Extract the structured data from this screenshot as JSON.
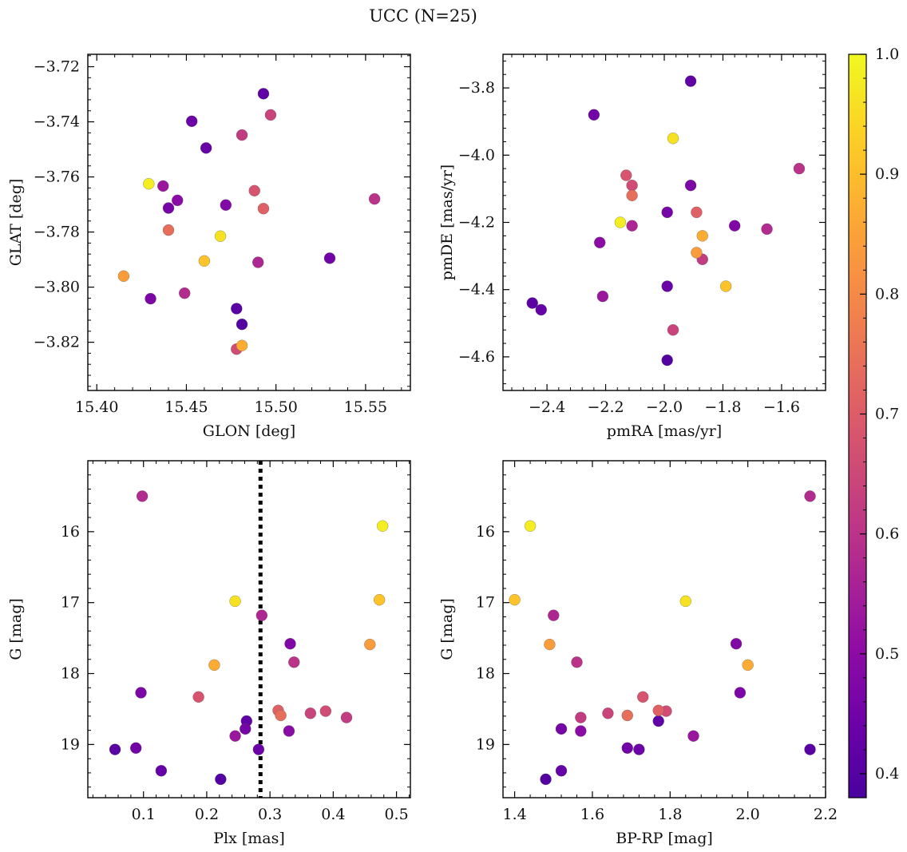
{
  "title": "UCC (N=25)",
  "colorbar": {
    "min": 0.38,
    "max": 1.0,
    "ticks": [
      0.4,
      0.5,
      0.6,
      0.7,
      0.8,
      0.9,
      1.0
    ],
    "tick_labels": [
      "0.4",
      "0.5",
      "0.6",
      "0.7",
      "0.8",
      "0.9",
      "1.0"
    ],
    "colormap": "plasma"
  },
  "stars": [
    {
      "glon": 15.429,
      "glat": -3.7625,
      "pmra": -2.15,
      "pmde": -4.2,
      "plx": 0.478,
      "g": 15.92,
      "bprp": 1.44,
      "p": 0.98
    },
    {
      "glon": 15.469,
      "glat": -3.7815,
      "pmra": -1.97,
      "pmde": -3.95,
      "plx": 0.245,
      "g": 16.98,
      "bprp": 1.84,
      "p": 0.96
    },
    {
      "glon": 15.46,
      "glat": -3.7905,
      "pmra": -1.79,
      "pmde": -4.39,
      "plx": 0.473,
      "g": 16.96,
      "bprp": 1.4,
      "p": 0.91
    },
    {
      "glon": 15.481,
      "glat": -3.8212,
      "pmra": -1.87,
      "pmde": -4.24,
      "plx": 0.212,
      "g": 17.88,
      "bprp": 2.0,
      "p": 0.87
    },
    {
      "glon": 15.415,
      "glat": -3.796,
      "pmra": -1.89,
      "pmde": -4.29,
      "plx": 0.458,
      "g": 17.59,
      "bprp": 1.49,
      "p": 0.84
    },
    {
      "glon": 15.44,
      "glat": -3.7793,
      "pmra": -2.11,
      "pmde": -4.12,
      "plx": 0.317,
      "g": 18.59,
      "bprp": 1.69,
      "p": 0.74
    },
    {
      "glon": 15.493,
      "glat": -3.7715,
      "pmra": -1.89,
      "pmde": -4.17,
      "plx": 0.313,
      "g": 18.52,
      "bprp": 1.77,
      "p": 0.71
    },
    {
      "glon": 15.488,
      "glat": -3.765,
      "pmra": -2.13,
      "pmde": -4.06,
      "plx": 0.187,
      "g": 18.33,
      "bprp": 1.73,
      "p": 0.68
    },
    {
      "glon": 15.478,
      "glat": -3.8225,
      "pmra": -2.11,
      "pmde": -4.09,
      "plx": 0.388,
      "g": 18.53,
      "bprp": 1.79,
      "p": 0.66
    },
    {
      "glon": 15.497,
      "glat": -3.7375,
      "pmra": -1.97,
      "pmde": -4.52,
      "plx": 0.364,
      "g": 18.56,
      "bprp": 1.64,
      "p": 0.64
    },
    {
      "glon": 15.481,
      "glat": -3.7448,
      "pmra": -1.87,
      "pmde": -4.31,
      "plx": 0.421,
      "g": 18.62,
      "bprp": 1.57,
      "p": 0.62
    },
    {
      "glon": 15.555,
      "glat": -3.768,
      "pmra": -1.54,
      "pmde": -4.04,
      "plx": 0.338,
      "g": 17.84,
      "bprp": 1.56,
      "p": 0.6
    },
    {
      "glon": 15.449,
      "glat": -3.8022,
      "pmra": -1.65,
      "pmde": -4.22,
      "plx": 0.098,
      "g": 15.5,
      "bprp": 2.16,
      "p": 0.58
    },
    {
      "glon": 15.49,
      "glat": -3.791,
      "pmra": -2.11,
      "pmde": -4.21,
      "plx": 0.287,
      "g": 17.18,
      "bprp": 1.5,
      "p": 0.57
    },
    {
      "glon": 15.437,
      "glat": -3.7633,
      "pmra": -2.21,
      "pmde": -4.42,
      "plx": 0.245,
      "g": 18.88,
      "bprp": 1.86,
      "p": 0.53
    },
    {
      "glon": 15.445,
      "glat": -3.7685,
      "pmra": -2.22,
      "pmde": -4.26,
      "plx": 0.33,
      "g": 18.81,
      "bprp": 1.57,
      "p": 0.5
    },
    {
      "glon": 15.472,
      "glat": -3.7702,
      "pmra": -1.76,
      "pmde": -4.21,
      "plx": 0.332,
      "g": 17.58,
      "bprp": 1.97,
      "p": 0.48
    },
    {
      "glon": 15.43,
      "glat": -3.8042,
      "pmra": -1.91,
      "pmde": -4.09,
      "plx": 0.096,
      "g": 18.27,
      "bprp": 1.98,
      "p": 0.47
    },
    {
      "glon": 15.44,
      "glat": -3.7713,
      "pmra": -1.99,
      "pmde": -4.17,
      "plx": 0.261,
      "g": 18.78,
      "bprp": 1.52,
      "p": 0.46
    },
    {
      "glon": 15.53,
      "glat": -3.7895,
      "pmra": -2.24,
      "pmde": -3.88,
      "plx": 0.088,
      "g": 19.05,
      "bprp": 1.69,
      "p": 0.45
    },
    {
      "glon": 15.453,
      "glat": -3.7398,
      "pmra": -1.99,
      "pmde": -4.39,
      "plx": 0.282,
      "g": 19.07,
      "bprp": 1.72,
      "p": 0.44
    },
    {
      "glon": 15.461,
      "glat": -3.7495,
      "pmra": -2.42,
      "pmde": -4.46,
      "plx": 0.128,
      "g": 19.37,
      "bprp": 1.52,
      "p": 0.43
    },
    {
      "glon": 15.493,
      "glat": -3.7298,
      "pmra": -1.91,
      "pmde": -3.78,
      "plx": 0.263,
      "g": 18.67,
      "bprp": 1.77,
      "p": 0.42
    },
    {
      "glon": 15.478,
      "glat": -3.8078,
      "pmra": -2.45,
      "pmde": -4.44,
      "plx": 0.055,
      "g": 19.07,
      "bprp": 2.16,
      "p": 0.41
    },
    {
      "glon": 15.481,
      "glat": -3.8135,
      "pmra": -1.99,
      "pmde": -4.61,
      "plx": 0.222,
      "g": 19.49,
      "bprp": 1.48,
      "p": 0.4
    }
  ],
  "chart_data": [
    {
      "type": "scatter",
      "x_field": "glon",
      "y_field": "glat",
      "xlabel": "GLON [deg]",
      "ylabel": "GLAT [deg]",
      "xlim": [
        15.395,
        15.575
      ],
      "ylim": [
        -3.8375,
        -3.7155
      ],
      "xticks": [
        15.4,
        15.45,
        15.5,
        15.55
      ],
      "xtick_labels": [
        "15.40",
        "15.45",
        "15.50",
        "15.55"
      ],
      "yticks": [
        -3.72,
        -3.74,
        -3.76,
        -3.78,
        -3.8,
        -3.82
      ],
      "ytick_labels": [
        "−3.72",
        "−3.74",
        "−3.76",
        "−3.78",
        "−3.80",
        "−3.82"
      ],
      "yinvert": false,
      "color_by": "membership probability"
    },
    {
      "type": "scatter",
      "x_field": "pmra",
      "y_field": "pmde",
      "xlabel": "pmRA [mas/yr]",
      "ylabel": "pmDE [mas/yr]",
      "xlim": [
        -2.55,
        -1.45
      ],
      "ylim": [
        -4.7,
        -3.7
      ],
      "xticks": [
        -2.4,
        -2.2,
        -2.0,
        -1.8,
        -1.6
      ],
      "xtick_labels": [
        "−2.4",
        "−2.2",
        "−2.0",
        "−1.8",
        "−1.6"
      ],
      "yticks": [
        -3.8,
        -4.0,
        -4.2,
        -4.4,
        -4.6
      ],
      "ytick_labels": [
        "−3.8",
        "−4.0",
        "−4.2",
        "−4.4",
        "−4.6"
      ],
      "yinvert": false
    },
    {
      "type": "scatter",
      "x_field": "plx",
      "y_field": "g",
      "xlabel": "Plx [mas]",
      "ylabel": "G [mag]",
      "xlim": [
        0.012,
        0.522
      ],
      "ylim": [
        15.0,
        19.75
      ],
      "xticks": [
        0.1,
        0.2,
        0.3,
        0.4,
        0.5
      ],
      "xtick_labels": [
        "0.1",
        "0.2",
        "0.3",
        "0.4",
        "0.5"
      ],
      "yticks": [
        16,
        17,
        18,
        19
      ],
      "ytick_labels": [
        "16",
        "17",
        "18",
        "19"
      ],
      "yinvert": true,
      "vline": 0.285,
      "vline_style": "dotted"
    },
    {
      "type": "scatter",
      "x_field": "bprp",
      "y_field": "g",
      "xlabel": "BP-RP [mag]",
      "ylabel": "G [mag]",
      "xlim": [
        1.37,
        2.2
      ],
      "ylim": [
        15.0,
        19.75
      ],
      "xticks": [
        1.4,
        1.6,
        1.8,
        2.0,
        2.2
      ],
      "xtick_labels": [
        "1.4",
        "1.6",
        "1.8",
        "2.0",
        "2.2"
      ],
      "yticks": [
        16,
        17,
        18,
        19
      ],
      "ytick_labels": [
        "16",
        "17",
        "18",
        "19"
      ],
      "yinvert": true
    }
  ]
}
